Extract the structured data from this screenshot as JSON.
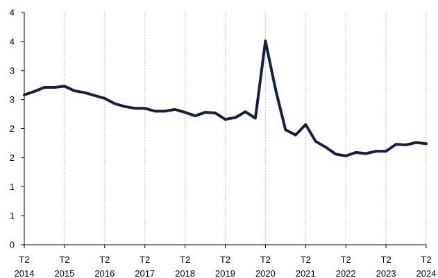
{
  "chart_data": {
    "type": "line",
    "title": "",
    "xlabel": "",
    "ylabel": "",
    "ylim": [
      0,
      4.0
    ],
    "y_ticks": [
      0,
      0.5,
      1.0,
      1.5,
      2.0,
      2.5,
      3.0,
      3.5,
      4.0
    ],
    "y_tick_labels": [
      "0",
      "1",
      "1",
      "2",
      "2",
      "3",
      "3",
      "4",
      "4"
    ],
    "x_ticks": [
      {
        "line1": "T2",
        "line2": "2014",
        "index": 0
      },
      {
        "line1": "T2",
        "line2": "2015",
        "index": 4
      },
      {
        "line1": "T2",
        "line2": "2016",
        "index": 8
      },
      {
        "line1": "T2",
        "line2": "2017",
        "index": 12
      },
      {
        "line1": "T2",
        "line2": "2018",
        "index": 16
      },
      {
        "line1": "T2",
        "line2": "2019",
        "index": 20
      },
      {
        "line1": "T2",
        "line2": "2020",
        "index": 24
      },
      {
        "line1": "T2",
        "line2": "2021",
        "index": 28
      },
      {
        "line1": "T2",
        "line2": "2022",
        "index": 32
      },
      {
        "line1": "T2",
        "line2": "2023",
        "index": 36
      },
      {
        "line1": "T2",
        "line2": "2024",
        "index": 40
      }
    ],
    "grid": {
      "vertical": true,
      "horizontal": false
    },
    "series": [
      {
        "color": "#12213d",
        "values": [
          2.58,
          2.64,
          2.71,
          2.71,
          2.73,
          2.65,
          2.62,
          2.57,
          2.52,
          2.43,
          2.38,
          2.35,
          2.35,
          2.3,
          2.3,
          2.33,
          2.28,
          2.22,
          2.28,
          2.27,
          2.16,
          2.19,
          2.29,
          2.18,
          3.51,
          2.68,
          1.98,
          1.89,
          2.07,
          1.78,
          1.68,
          1.56,
          1.53,
          1.59,
          1.57,
          1.61,
          1.61,
          1.73,
          1.72,
          1.76,
          1.74
        ]
      }
    ]
  }
}
